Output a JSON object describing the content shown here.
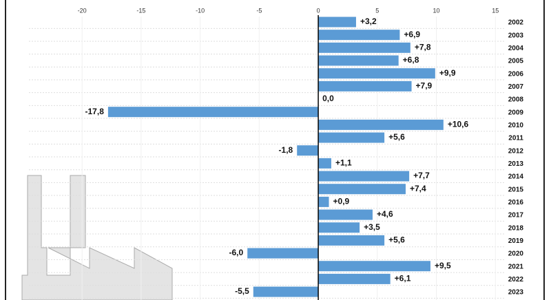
{
  "chart_data": {
    "type": "bar",
    "orientation": "horizontal",
    "categories": [
      "2002",
      "2003",
      "2004",
      "2005",
      "2006",
      "2007",
      "2008",
      "2009",
      "2010",
      "2011",
      "2012",
      "2013",
      "2014",
      "2015",
      "2016",
      "2017",
      "2018",
      "2019",
      "2020",
      "2021",
      "2022",
      "2023"
    ],
    "values": [
      3.2,
      6.9,
      7.8,
      6.8,
      9.9,
      7.9,
      0.0,
      -17.8,
      10.6,
      5.6,
      -1.8,
      1.1,
      7.7,
      7.4,
      0.9,
      4.6,
      3.5,
      5.6,
      -6.0,
      9.5,
      6.1,
      -5.5
    ],
    "value_labels": [
      "+3,2",
      "+6,9",
      "+7,8",
      "+6,8",
      "+9,9",
      "+7,9",
      "0,0",
      "-17,8",
      "+10,6",
      "+5,6",
      "-1,8",
      "+1,1",
      "+7,7",
      "+7,4",
      "+0,9",
      "+4,6",
      "+3,5",
      "+5,6",
      "-6,0",
      "+9,5",
      "+6,1",
      "-5,5"
    ],
    "color": "#5b9bd5",
    "xlim": [
      -24.5,
      15.8
    ],
    "xticks": [
      -20,
      -15,
      -10,
      -5,
      0,
      5,
      10,
      15
    ]
  }
}
